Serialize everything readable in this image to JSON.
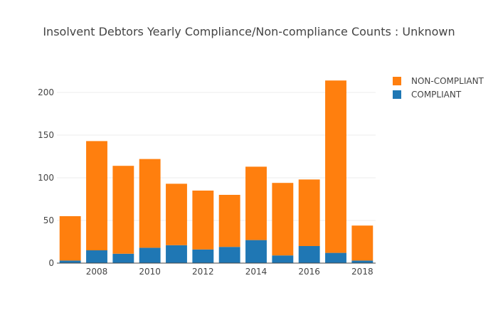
{
  "chart_data": {
    "type": "bar",
    "barmode": "stack",
    "title": "Insolvent Debtors Yearly Compliance/Non-compliance Counts : Unknown",
    "xlabel": "",
    "ylabel": "",
    "x": [
      2007,
      2008,
      2009,
      2010,
      2011,
      2012,
      2013,
      2014,
      2015,
      2016,
      2017,
      2018
    ],
    "x_ticks": [
      "2008",
      "2010",
      "2012",
      "2014",
      "2016",
      "2018"
    ],
    "y_ticks": [
      "0",
      "50",
      "100",
      "150",
      "200"
    ],
    "ylim": [
      0,
      225
    ],
    "grid": true,
    "legend_position": "top-right",
    "series": [
      {
        "name": "COMPLIANT",
        "color": "#1f77b4",
        "values": [
          3,
          15,
          11,
          18,
          21,
          16,
          19,
          27,
          9,
          20,
          12,
          3
        ]
      },
      {
        "name": "NON-COMPLIANT",
        "color": "#ff7f0e",
        "values": [
          52,
          128,
          103,
          104,
          72,
          69,
          61,
          86,
          85,
          78,
          202,
          41
        ]
      }
    ]
  }
}
